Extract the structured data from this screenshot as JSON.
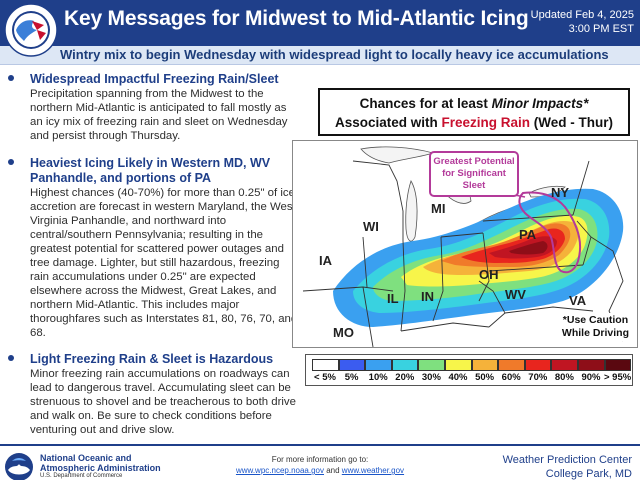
{
  "header": {
    "title": "Key Messages for Midwest to Mid-Atlantic Icing",
    "updated_line1": "Updated Feb 4, 2025",
    "updated_line2": "3:00 PM EST",
    "subtitle": "Wintry mix to begin Wednesday with widespread light to locally heavy ice accumulations",
    "logo_icon": "nws-logo-icon"
  },
  "messages": [
    {
      "heading": "Widespread Impactful Freezing Rain/Sleet",
      "body": "Precipitation spanning from the Midwest to the northern Mid-Atlantic is anticipated to fall mostly as an icy mix of freezing rain and sleet on Wednesday and persist through Thursday."
    },
    {
      "heading": "Heaviest Icing Likely in Western MD, WV Panhandle, and portions of PA",
      "body": "Highest chances (40-70%) for more than 0.25\" of ice accretion are forecast in western Maryland, the West Virginia Panhandle, and northward into central/southern Pennsylvania; resulting in the greatest potential for scattered power outages and tree damage. Lighter, but still hazardous, freezing rain accumulations under 0.25\" are expected elsewhere across the Midwest, Great Lakes, and northern Mid-Atlantic. This includes major thoroughfares such as Interstates 81, 80, 76, 70, and 68."
    },
    {
      "heading": "Light Freezing Rain & Sleet is Hazardous",
      "body": "Minor freezing rain accumulations on roadways can lead to dangerous travel. Accumulating sleet can be strenuous to shovel and be treacherous to both drive and walk on. Be sure to check conditions before venturing out and drive slow."
    }
  ],
  "map": {
    "box_line1_prefix": "Chances for at least ",
    "box_line1_emph": "Minor Impacts*",
    "box_line2_prefix": "Associated with ",
    "box_line2_emph": "Freezing Rain",
    "box_line2_suffix": " (Wed - Thur)",
    "emph_color": "#c8102e",
    "callout": "Greatest Potential for Significant Sleet",
    "callout_color": "#b33a9a",
    "caution_line1": "*Use Caution",
    "caution_line2": "While Driving",
    "states": [
      "WI",
      "MI",
      "NY",
      "IA",
      "PA",
      "OH",
      "IL",
      "IN",
      "WV",
      "VA",
      "MO"
    ]
  },
  "legend": {
    "labels": [
      "< 5%",
      "5%",
      "10%",
      "20%",
      "30%",
      "40%",
      "50%",
      "60%",
      "70%",
      "80%",
      "90%",
      "> 95%"
    ],
    "colors": [
      "#ffffff",
      "#3b5cf0",
      "#3aa0f0",
      "#39d2e0",
      "#7fe07f",
      "#f7f54a",
      "#f5b23a",
      "#f07a2a",
      "#e8251e",
      "#c01522",
      "#8e0e18",
      "#5a0810"
    ]
  },
  "footer": {
    "noaa_line1": "National Oceanic and",
    "noaa_line2": "Atmospheric Administration",
    "noaa_dept": "U.S. Department of Commerce",
    "more_info": "For more information go to:",
    "link1": "www.wpc.ncep.noaa.gov",
    "link_and": " and ",
    "link2": "www.weather.gov",
    "wpc_line1": "Weather Prediction Center",
    "wpc_line2": "College Park, MD"
  }
}
